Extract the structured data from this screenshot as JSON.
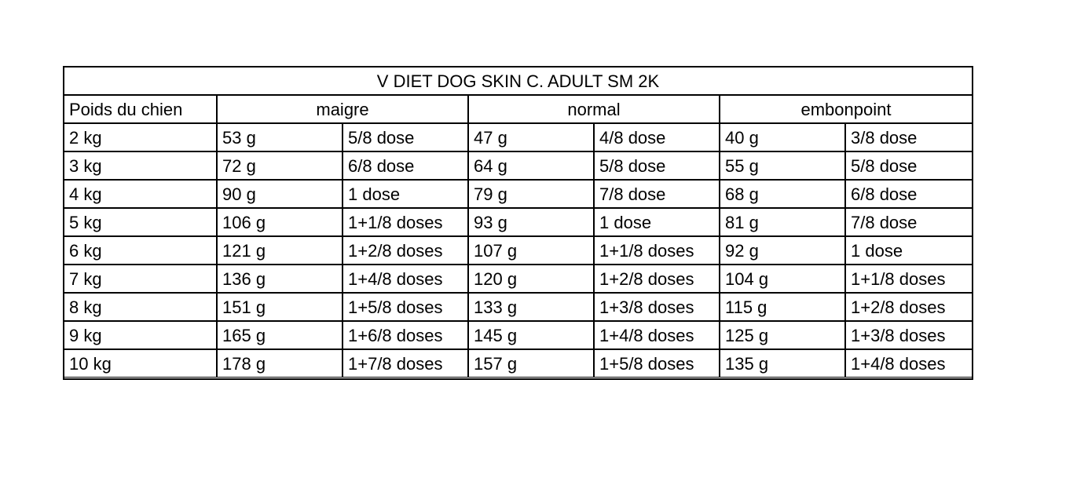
{
  "table": {
    "title": "V DIET DOG SKIN C. ADULT SM 2K",
    "header": [
      "Poids du chien",
      "maigre",
      "normal",
      "embonpoint"
    ],
    "rows": [
      [
        "2 kg",
        "53 g",
        "5/8 dose",
        "47 g",
        "4/8 dose",
        "40 g",
        "3/8 dose"
      ],
      [
        "3 kg",
        "72 g",
        "6/8 dose",
        "64 g",
        "5/8 dose",
        "55 g",
        "5/8 dose"
      ],
      [
        "4 kg",
        "90 g",
        "1 dose",
        "79 g",
        "7/8 dose",
        "68 g",
        "6/8 dose"
      ],
      [
        "5 kg",
        "106 g",
        "1+1/8 doses",
        "93 g",
        "1 dose",
        "81 g",
        "7/8 dose"
      ],
      [
        "6 kg",
        "121 g",
        "1+2/8 doses",
        "107 g",
        "1+1/8 doses",
        "92 g",
        "1 dose"
      ],
      [
        "7 kg",
        "136 g",
        "1+4/8 doses",
        "120 g",
        "1+2/8 doses",
        "104 g",
        "1+1/8 doses"
      ],
      [
        "8 kg",
        "151 g",
        "1+5/8 doses",
        "133 g",
        "1+3/8 doses",
        "115 g",
        "1+2/8 doses"
      ],
      [
        "9 kg",
        "165 g",
        "1+6/8 doses",
        "145 g",
        "1+4/8 doses",
        "125 g",
        "1+3/8 doses"
      ],
      [
        "10 kg",
        "178 g",
        "1+7/8 doses",
        "157 g",
        "1+5/8 doses",
        "135 g",
        "1+4/8 doses"
      ]
    ]
  }
}
